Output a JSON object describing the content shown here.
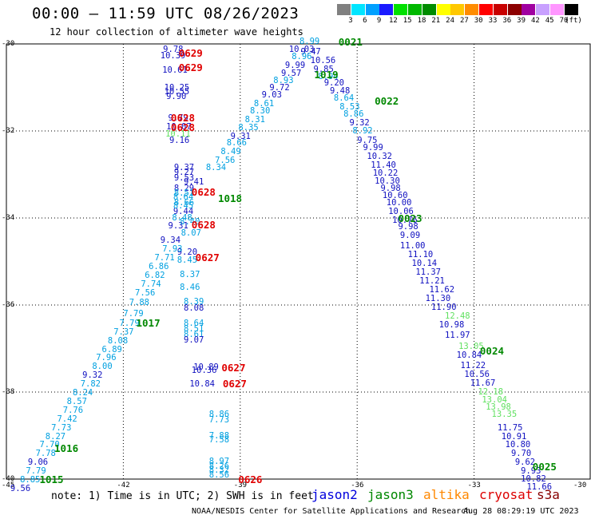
{
  "title": "00:00 – 11:59 UTC 08/26/2023",
  "subtitle": "12 hour collection of altimeter wave heights",
  "colorbar": {
    "unit": "(ft)",
    "bins": [
      {
        "label": "3",
        "color": "#808080"
      },
      {
        "label": "6",
        "color": "#00e5ff"
      },
      {
        "label": "9",
        "color": "#00a0ff"
      },
      {
        "label": "12",
        "color": "#1a1aff"
      },
      {
        "label": "15",
        "color": "#00e000"
      },
      {
        "label": "18",
        "color": "#00b800"
      },
      {
        "label": "21",
        "color": "#008c00"
      },
      {
        "label": "24",
        "color": "#ffff00"
      },
      {
        "label": "27",
        "color": "#ffc800"
      },
      {
        "label": "30",
        "color": "#ff8c00"
      },
      {
        "label": "33",
        "color": "#ff0000"
      },
      {
        "label": "36",
        "color": "#c80000"
      },
      {
        "label": "39",
        "color": "#8c0000"
      },
      {
        "label": "42",
        "color": "#a000a0"
      },
      {
        "label": "45",
        "color": "#c8a0ff"
      },
      {
        "label": "70",
        "color": "#ff96ff"
      },
      {
        "label": "",
        "color": "#000000"
      }
    ]
  },
  "axes": {
    "lat_ticks": [
      "-30",
      "-32",
      "-34",
      "-36",
      "-38",
      "-40"
    ],
    "lon_ticks": [
      "-45",
      "-42",
      "-39",
      "-36",
      "-33",
      "-30"
    ]
  },
  "note": "note:  1) Time is in UTC;  2) SWH is in feet",
  "satellites": [
    {
      "name": "jason2",
      "color": "#0000dd"
    },
    {
      "name": "jason3",
      "color": "#008800"
    },
    {
      "name": "altika",
      "color": "#ff8800"
    },
    {
      "name": "cryosat",
      "color": "#dd0000"
    },
    {
      "name": "s3a",
      "color": "#880000"
    }
  ],
  "credit": "NOAA/NESDIS Center for Satellite Applications and Research",
  "timestamp": "Aug 28 08:29:19 UTC 2023",
  "colors": {
    "lt": "#00a0e0",
    "db": "#1010c0",
    "lg": "#60e060",
    "dg": "#008800",
    "rd": "#e00000"
  },
  "pass_labels": [
    {
      "text": "0629",
      "c": "rd",
      "lon": -40.58,
      "lat": -30.2
    },
    {
      "text": "0629",
      "c": "rd",
      "lon": -40.58,
      "lat": -30.53
    },
    {
      "text": "0628",
      "c": "rd",
      "lon": -40.78,
      "lat": -31.68
    },
    {
      "text": "0628",
      "c": "rd",
      "lon": -40.78,
      "lat": -31.9
    },
    {
      "text": "0628",
      "c": "rd",
      "lon": -40.25,
      "lat": -33.4
    },
    {
      "text": "0628",
      "c": "rd",
      "lon": -40.25,
      "lat": -34.15
    },
    {
      "text": "0627",
      "c": "rd",
      "lon": -40.15,
      "lat": -34.9
    },
    {
      "text": "0627",
      "c": "rd",
      "lon": -39.48,
      "lat": -37.43
    },
    {
      "text": "0627",
      "c": "rd",
      "lon": -39.45,
      "lat": -37.8
    },
    {
      "text": "0626",
      "c": "rd",
      "lon": -39.05,
      "lat": -40.0
    },
    {
      "text": "0021",
      "c": "dg",
      "lon": -36.48,
      "lat": -29.95
    },
    {
      "text": "1019",
      "c": "dg",
      "lon": -37.1,
      "lat": -30.7
    },
    {
      "text": "0022",
      "c": "dg",
      "lon": -35.55,
      "lat": -31.3
    },
    {
      "text": "1018",
      "c": "dg",
      "lon": -39.57,
      "lat": -33.55
    },
    {
      "text": "0023",
      "c": "dg",
      "lon": -34.95,
      "lat": -34.0
    },
    {
      "text": "1017",
      "c": "dg",
      "lon": -41.67,
      "lat": -36.4
    },
    {
      "text": "0024",
      "c": "dg",
      "lon": -32.85,
      "lat": -37.05
    },
    {
      "text": "1016",
      "c": "dg",
      "lon": -43.77,
      "lat": -39.28
    },
    {
      "text": "1015",
      "c": "dg",
      "lon": -44.15,
      "lat": -40.0
    },
    {
      "text": "0025",
      "c": "dg",
      "lon": -31.5,
      "lat": -39.7
    }
  ],
  "values": [
    {
      "t": "9.78",
      "c": "db",
      "lon": -40.98,
      "lat": -30.12
    },
    {
      "t": "10.39",
      "c": "db",
      "lon": -41.05,
      "lat": -30.28
    },
    {
      "t": "10.61",
      "c": "db",
      "lon": -41.0,
      "lat": -30.6
    },
    {
      "t": "10.25",
      "c": "db",
      "lon": -40.95,
      "lat": -31.0
    },
    {
      "t": "10.55",
      "c": "db",
      "lon": -40.95,
      "lat": -31.1
    },
    {
      "t": "9.90",
      "c": "db",
      "lon": -40.9,
      "lat": -31.22
    },
    {
      "t": "9.79",
      "c": "db",
      "lon": -40.85,
      "lat": -31.7
    },
    {
      "t": "10.07",
      "c": "db",
      "lon": -40.9,
      "lat": -31.9
    },
    {
      "t": "10.11",
      "c": "lg",
      "lon": -40.92,
      "lat": -32.07
    },
    {
      "t": "9.16",
      "c": "db",
      "lon": -40.82,
      "lat": -32.22
    },
    {
      "t": "9.37",
      "c": "db",
      "lon": -40.7,
      "lat": -32.85
    },
    {
      "t": "9.27",
      "c": "db",
      "lon": -40.7,
      "lat": -32.95
    },
    {
      "t": "9.53",
      "c": "db",
      "lon": -40.7,
      "lat": -33.08
    },
    {
      "t": "9.41",
      "c": "db",
      "lon": -40.45,
      "lat": -33.18
    },
    {
      "t": "8.29",
      "c": "db",
      "lon": -40.7,
      "lat": -33.33
    },
    {
      "t": "8.51",
      "c": "lt",
      "lon": -40.7,
      "lat": -33.43
    },
    {
      "t": "8.64",
      "c": "lt",
      "lon": -40.72,
      "lat": -33.53
    },
    {
      "t": "8.66",
      "c": "lt",
      "lon": -40.7,
      "lat": -33.65
    },
    {
      "t": "9.44",
      "c": "db",
      "lon": -40.72,
      "lat": -33.85
    },
    {
      "t": "8.48",
      "c": "lt",
      "lon": -40.75,
      "lat": -34.0
    },
    {
      "t": "9.31",
      "c": "db",
      "lon": -40.85,
      "lat": -34.18
    },
    {
      "t": "8.07",
      "c": "lt",
      "lon": -40.52,
      "lat": -34.35
    },
    {
      "t": "9.34",
      "c": "db",
      "lon": -41.05,
      "lat": -34.52
    },
    {
      "t": "9.20",
      "c": "db",
      "lon": -40.62,
      "lat": -34.78
    },
    {
      "t": "8.45",
      "c": "lt",
      "lon": -40.62,
      "lat": -34.98
    },
    {
      "t": "8.37",
      "c": "lt",
      "lon": -40.55,
      "lat": -35.3
    },
    {
      "t": "8.46",
      "c": "lt",
      "lon": -40.55,
      "lat": -35.6
    },
    {
      "t": "8.39",
      "c": "lt",
      "lon": -40.45,
      "lat": -35.93
    },
    {
      "t": "8.08",
      "c": "db",
      "lon": -40.45,
      "lat": -36.08
    },
    {
      "t": "8.64",
      "c": "lt",
      "lon": -40.45,
      "lat": -36.42
    },
    {
      "t": "8.51",
      "c": "lt",
      "lon": -40.45,
      "lat": -36.55
    },
    {
      "t": "8.61",
      "c": "lt",
      "lon": -40.45,
      "lat": -36.68
    },
    {
      "t": "9.07",
      "c": "db",
      "lon": -40.45,
      "lat": -36.8
    },
    {
      "t": "10.89",
      "c": "db",
      "lon": -40.2,
      "lat": -37.43
    },
    {
      "t": "10.36",
      "c": "db",
      "lon": -40.25,
      "lat": -37.5
    },
    {
      "t": "10.84",
      "c": "db",
      "lon": -40.3,
      "lat": -37.82
    },
    {
      "t": "8.86",
      "c": "lt",
      "lon": -39.8,
      "lat": -38.52
    },
    {
      "t": "7.73",
      "c": "lt",
      "lon": -39.8,
      "lat": -38.65
    },
    {
      "t": "7.88",
      "c": "lt",
      "lon": -39.8,
      "lat": -39.0
    },
    {
      "t": "7.58",
      "c": "lt",
      "lon": -39.8,
      "lat": -39.1
    },
    {
      "t": "8.97",
      "c": "lt",
      "lon": -39.8,
      "lat": -39.6
    },
    {
      "t": "8.26",
      "c": "lt",
      "lon": -39.8,
      "lat": -39.7
    },
    {
      "t": "8.32",
      "c": "lt",
      "lon": -39.8,
      "lat": -39.8
    },
    {
      "t": "8.56",
      "c": "lt",
      "lon": -39.8,
      "lat": -39.9
    },
    {
      "t": "8.99",
      "c": "lt",
      "lon": -37.48,
      "lat": -29.95
    },
    {
      "t": "10.03",
      "c": "db",
      "lon": -37.75,
      "lat": -30.12
    },
    {
      "t": "9.47",
      "c": "db",
      "lon": -37.45,
      "lat": -30.18
    },
    {
      "t": "8.96",
      "c": "lt",
      "lon": -37.68,
      "lat": -30.3
    },
    {
      "t": "10.56",
      "c": "db",
      "lon": -37.2,
      "lat": -30.38
    },
    {
      "t": "9.99",
      "c": "db",
      "lon": -37.85,
      "lat": -30.5
    },
    {
      "t": "9.85",
      "c": "db",
      "lon": -37.12,
      "lat": -30.58
    },
    {
      "t": "9.57",
      "c": "db",
      "lon": -37.95,
      "lat": -30.68
    },
    {
      "t": "8.94",
      "c": "lt",
      "lon": -37.0,
      "lat": -30.75
    },
    {
      "t": "8.93",
      "c": "lt",
      "lon": -38.15,
      "lat": -30.85
    },
    {
      "t": "9.20",
      "c": "db",
      "lon": -36.85,
      "lat": -30.9
    },
    {
      "t": "9.72",
      "c": "db",
      "lon": -38.25,
      "lat": -31.0
    },
    {
      "t": "9.48",
      "c": "db",
      "lon": -36.7,
      "lat": -31.08
    },
    {
      "t": "9.03",
      "c": "db",
      "lon": -38.45,
      "lat": -31.18
    },
    {
      "t": "8.64",
      "c": "lt",
      "lon": -36.6,
      "lat": -31.25
    },
    {
      "t": "8.61",
      "c": "lt",
      "lon": -38.65,
      "lat": -31.38
    },
    {
      "t": "8.53",
      "c": "lt",
      "lon": -36.45,
      "lat": -31.45
    },
    {
      "t": "8.30",
      "c": "lt",
      "lon": -38.75,
      "lat": -31.55
    },
    {
      "t": "8.86",
      "c": "lt",
      "lon": -36.35,
      "lat": -31.62
    },
    {
      "t": "8.31",
      "c": "lt",
      "lon": -38.88,
      "lat": -31.75
    },
    {
      "t": "9.32",
      "c": "db",
      "lon": -36.2,
      "lat": -31.82
    },
    {
      "t": "8.35",
      "c": "lt",
      "lon": -39.05,
      "lat": -31.92
    },
    {
      "t": "8.92",
      "c": "lt",
      "lon": -36.12,
      "lat": -32.0
    },
    {
      "t": "9.31",
      "c": "db",
      "lon": -39.25,
      "lat": -32.12
    },
    {
      "t": "9.75",
      "c": "db",
      "lon": -36.0,
      "lat": -32.22
    },
    {
      "t": "8.66",
      "c": "lt",
      "lon": -39.35,
      "lat": -32.28
    },
    {
      "t": "9.99",
      "c": "db",
      "lon": -35.85,
      "lat": -32.38
    },
    {
      "t": "8.49",
      "c": "lt",
      "lon": -39.5,
      "lat": -32.48
    },
    {
      "t": "10.32",
      "c": "db",
      "lon": -35.75,
      "lat": -32.58
    },
    {
      "t": "7.56",
      "c": "lt",
      "lon": -39.65,
      "lat": -32.68
    },
    {
      "t": "11.40",
      "c": "db",
      "lon": -35.65,
      "lat": -32.78
    },
    {
      "t": "8.34",
      "c": "lt",
      "lon": -39.88,
      "lat": -32.85
    },
    {
      "t": "10.22",
      "c": "db",
      "lon": -35.6,
      "lat": -32.98
    },
    {
      "t": "10.30",
      "c": "db",
      "lon": -35.55,
      "lat": -33.15
    },
    {
      "t": "9.98",
      "c": "db",
      "lon": -35.4,
      "lat": -33.33
    },
    {
      "t": "10.60",
      "c": "db",
      "lon": -35.35,
      "lat": -33.48
    },
    {
      "t": "10.00",
      "c": "db",
      "lon": -35.25,
      "lat": -33.65
    },
    {
      "t": "10.06",
      "c": "db",
      "lon": -35.2,
      "lat": -33.85
    },
    {
      "t": "10.76",
      "c": "db",
      "lon": -35.1,
      "lat": -34.05
    },
    {
      "t": "9.98",
      "c": "db",
      "lon": -34.95,
      "lat": -34.2
    },
    {
      "t": "9.09",
      "c": "db",
      "lon": -34.9,
      "lat": -34.4
    },
    {
      "t": "11.00",
      "c": "db",
      "lon": -34.9,
      "lat": -34.65
    },
    {
      "t": "11.10",
      "c": "db",
      "lon": -34.7,
      "lat": -34.85
    },
    {
      "t": "10.14",
      "c": "db",
      "lon": -34.6,
      "lat": -35.05
    },
    {
      "t": "11.37",
      "c": "db",
      "lon": -34.5,
      "lat": -35.25
    },
    {
      "t": "11.21",
      "c": "db",
      "lon": -34.4,
      "lat": -35.45
    },
    {
      "t": "11.62",
      "c": "db",
      "lon": -34.15,
      "lat": -35.65
    },
    {
      "t": "11.30",
      "c": "db",
      "lon": -34.25,
      "lat": -35.85
    },
    {
      "t": "11.90",
      "c": "db",
      "lon": -34.1,
      "lat": -36.05
    },
    {
      "t": "12.48",
      "c": "lg",
      "lon": -33.75,
      "lat": -36.25
    },
    {
      "t": "10.98",
      "c": "db",
      "lon": -33.9,
      "lat": -36.45
    },
    {
      "t": "11.97",
      "c": "db",
      "lon": -33.75,
      "lat": -36.7
    },
    {
      "t": "13.05",
      "c": "lg",
      "lon": -33.4,
      "lat": -36.95
    },
    {
      "t": "10.84",
      "c": "db",
      "lon": -33.45,
      "lat": -37.15
    },
    {
      "t": "11.22",
      "c": "db",
      "lon": -33.35,
      "lat": -37.4
    },
    {
      "t": "10.56",
      "c": "db",
      "lon": -33.25,
      "lat": -37.6
    },
    {
      "t": "11.67",
      "c": "db",
      "lon": -33.1,
      "lat": -37.8
    },
    {
      "t": "12.18",
      "c": "lg",
      "lon": -32.9,
      "lat": -38.0
    },
    {
      "t": "13.04",
      "c": "lg",
      "lon": -32.8,
      "lat": -38.18
    },
    {
      "t": "13.98",
      "c": "lg",
      "lon": -32.7,
      "lat": -38.35
    },
    {
      "t": "13.35",
      "c": "lg",
      "lon": -32.55,
      "lat": -38.52
    },
    {
      "t": "11.75",
      "c": "db",
      "lon": -32.4,
      "lat": -38.82
    },
    {
      "t": "10.91",
      "c": "db",
      "lon": -32.3,
      "lat": -39.02
    },
    {
      "t": "10.80",
      "c": "db",
      "lon": -32.2,
      "lat": -39.22
    },
    {
      "t": "9.70",
      "c": "db",
      "lon": -32.05,
      "lat": -39.42
    },
    {
      "t": "9.62",
      "c": "db",
      "lon": -31.95,
      "lat": -39.62
    },
    {
      "t": "9.93",
      "c": "db",
      "lon": -31.8,
      "lat": -39.82
    },
    {
      "t": "10.82",
      "c": "db",
      "lon": -31.8,
      "lat": -40.0
    },
    {
      "t": "11.66",
      "c": "db",
      "lon": -31.65,
      "lat": -40.18
    },
    {
      "t": "8.45",
      "c": "lt",
      "lon": -40.72,
      "lat": -33.72
    },
    {
      "t": "8.40",
      "c": "lt",
      "lon": -40.55,
      "lat": -34.1
    },
    {
      "t": "7.93",
      "c": "lt",
      "lon": -41.0,
      "lat": -34.72
    },
    {
      "t": "7.71",
      "c": "lt",
      "lon": -41.2,
      "lat": -34.92
    },
    {
      "t": "6.86",
      "c": "lt",
      "lon": -41.35,
      "lat": -35.12
    },
    {
      "t": "6.82",
      "c": "lt",
      "lon": -41.45,
      "lat": -35.32
    },
    {
      "t": "7.74",
      "c": "lt",
      "lon": -41.55,
      "lat": -35.52
    },
    {
      "t": "7.56",
      "c": "lt",
      "lon": -41.7,
      "lat": -35.72
    },
    {
      "t": "7.88",
      "c": "lt",
      "lon": -41.85,
      "lat": -35.95
    },
    {
      "t": "7.79",
      "c": "lt",
      "lon": -42.0,
      "lat": -36.2
    },
    {
      "t": "7.79",
      "c": "lt",
      "lon": -42.1,
      "lat": -36.42
    },
    {
      "t": "7.37",
      "c": "lt",
      "lon": -42.25,
      "lat": -36.62
    },
    {
      "t": "8.08",
      "c": "lt",
      "lon": -42.4,
      "lat": -36.82
    },
    {
      "t": "6.89",
      "c": "lt",
      "lon": -42.55,
      "lat": -37.02
    },
    {
      "t": "7.96",
      "c": "lt",
      "lon": -42.7,
      "lat": -37.22
    },
    {
      "t": "8.00",
      "c": "lt",
      "lon": -42.8,
      "lat": -37.42
    },
    {
      "t": "9.32",
      "c": "db",
      "lon": -43.05,
      "lat": -37.62
    },
    {
      "t": "7.82",
      "c": "lt",
      "lon": -43.1,
      "lat": -37.82
    },
    {
      "t": "8.24",
      "c": "lt",
      "lon": -43.3,
      "lat": -38.02
    },
    {
      "t": "8.57",
      "c": "lt",
      "lon": -43.45,
      "lat": -38.22
    },
    {
      "t": "7.76",
      "c": "lt",
      "lon": -43.55,
      "lat": -38.42
    },
    {
      "t": "7.42",
      "c": "lt",
      "lon": -43.7,
      "lat": -38.62
    },
    {
      "t": "7.73",
      "c": "lt",
      "lon": -43.85,
      "lat": -38.82
    },
    {
      "t": "8.27",
      "c": "lt",
      "lon": -44.0,
      "lat": -39.02
    },
    {
      "t": "7.70",
      "c": "lt",
      "lon": -44.15,
      "lat": -39.22
    },
    {
      "t": "7.78",
      "c": "lt",
      "lon": -44.25,
      "lat": -39.42
    },
    {
      "t": "9.06",
      "c": "db",
      "lon": -44.45,
      "lat": -39.62
    },
    {
      "t": "7.79",
      "c": "lt",
      "lon": -44.5,
      "lat": -39.82
    },
    {
      "t": "8.85",
      "c": "lt",
      "lon": -44.65,
      "lat": -40.02
    },
    {
      "t": "9.56",
      "c": "db",
      "lon": -44.9,
      "lat": -40.22
    }
  ]
}
